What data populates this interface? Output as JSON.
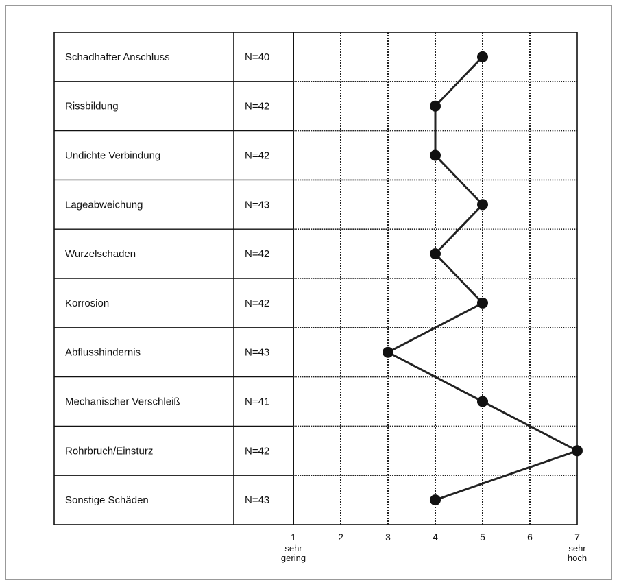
{
  "chart_data": {
    "type": "line",
    "categories": [
      "Schadhafter Anschluss",
      "Rissbildung",
      "Undichte Verbindung",
      "Lageabweichung",
      "Wurzelschaden",
      "Korrosion",
      "Abflusshindernis",
      "Mechanischer Verschleiß",
      "Rohrbruch/Einsturz",
      "Sonstige Schäden"
    ],
    "n_labels": [
      "N=40",
      "N=42",
      "N=42",
      "N=43",
      "N=42",
      "N=42",
      "N=43",
      "N=41",
      "N=42",
      "N=43"
    ],
    "values": [
      5,
      4,
      4,
      5,
      4,
      5,
      3,
      5,
      7,
      4
    ],
    "xlim": [
      1,
      7
    ],
    "ticks": [
      "1",
      "2",
      "3",
      "4",
      "5",
      "6",
      "7"
    ],
    "low_label": [
      "sehr",
      "gering"
    ],
    "high_label": [
      "sehr",
      "hoch"
    ],
    "grid": true,
    "colors": {
      "line": "#222222",
      "marker": "#111111",
      "grid": "#222222"
    }
  }
}
